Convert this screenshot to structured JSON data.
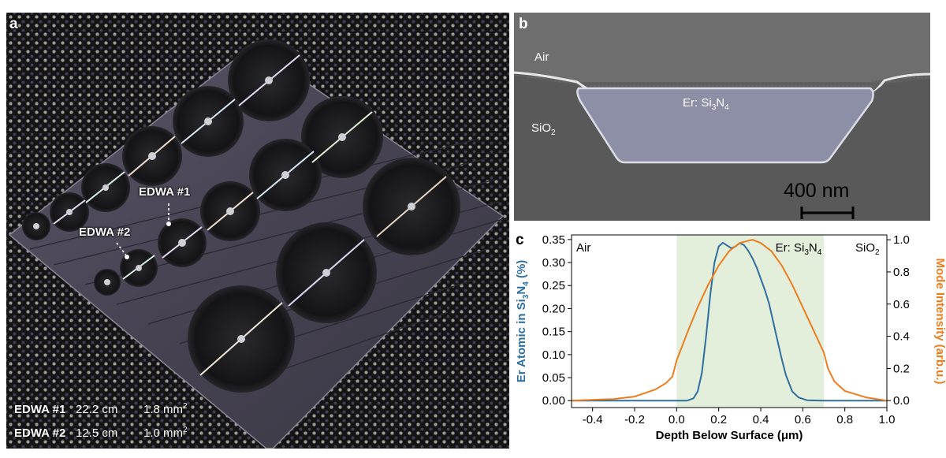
{
  "panel_a": {
    "letter": "a",
    "callouts": {
      "edwa1": "EDWA #1",
      "edwa2": "EDWA #2"
    },
    "legend": [
      {
        "name": "EDWA #1",
        "length": "22.2 cm",
        "area_value": "1.8 mm",
        "area_exp": "2"
      },
      {
        "name": "EDWA #2",
        "length": "12.5 cm",
        "area_value": "1.0 mm",
        "area_exp": "2"
      }
    ]
  },
  "panel_b": {
    "letter": "b",
    "air_label": "Air",
    "sio2_label": {
      "base": "SiO",
      "sub": "2"
    },
    "core_label": {
      "prefix": "Er: Si",
      "sub1": "3",
      "mid": "N",
      "sub2": "4"
    },
    "scale_bar_label": "400 nm"
  },
  "panel_c": {
    "letter": "c"
  },
  "chart_data": {
    "type": "line",
    "xlabel": "Depth Below Surface (μm)",
    "ylabel_left": {
      "prefix": "Er Atomic in Si",
      "sub1": "3",
      "mid": "N",
      "sub2": "4",
      "suffix": " (%)"
    },
    "ylabel_right": "Mode Intensity (arb.u.)",
    "xlim": [
      -0.5,
      1.0
    ],
    "ylim_left": [
      -0.015,
      0.36
    ],
    "ylim_right": [
      -0.043,
      1.03
    ],
    "xticks": [
      "-0.4",
      "-0.2",
      "0.0",
      "0.2",
      "0.4",
      "0.6",
      "0.8",
      "1.0"
    ],
    "xtick_values": [
      -0.4,
      -0.2,
      0.0,
      0.2,
      0.4,
      0.6,
      0.8,
      1.0
    ],
    "yticks_left": [
      "0.00",
      "0.05",
      "0.10",
      "0.15",
      "0.20",
      "0.25",
      "0.30",
      "0.35"
    ],
    "ytick_values_left": [
      0,
      0.05,
      0.1,
      0.15,
      0.2,
      0.25,
      0.3,
      0.35
    ],
    "yticks_right": [
      "0.0",
      "0.2",
      "0.4",
      "0.6",
      "0.8",
      "1.0"
    ],
    "ytick_values_right": [
      0,
      0.2,
      0.4,
      0.6,
      0.8,
      1.0
    ],
    "region_labels": {
      "air": "Air",
      "core": {
        "prefix": "Er: Si",
        "sub1": "3",
        "mid": "N",
        "sub2": "4"
      },
      "sio2": {
        "base": "SiO",
        "sub": "2"
      }
    },
    "shaded_region": {
      "x0": 0.0,
      "x1": 0.7,
      "color": "#e3eedb"
    },
    "series": [
      {
        "axis": "left",
        "color": "#2f6f9f",
        "x": [
          -0.5,
          0.05,
          0.08,
          0.1,
          0.12,
          0.14,
          0.16,
          0.18,
          0.2,
          0.22,
          0.24,
          0.26,
          0.28,
          0.3,
          0.32,
          0.34,
          0.36,
          0.38,
          0.4,
          0.42,
          0.44,
          0.46,
          0.48,
          0.5,
          0.52,
          0.55,
          0.58,
          0.62,
          0.7,
          1.0
        ],
        "y": [
          0.0,
          0.0,
          0.005,
          0.02,
          0.06,
          0.14,
          0.23,
          0.3,
          0.335,
          0.343,
          0.337,
          0.331,
          0.335,
          0.342,
          0.338,
          0.326,
          0.31,
          0.29,
          0.265,
          0.24,
          0.21,
          0.17,
          0.13,
          0.09,
          0.055,
          0.02,
          0.007,
          0.001,
          0.0,
          0.0
        ]
      },
      {
        "axis": "right",
        "color": "#ee7d1e",
        "x": [
          -0.5,
          -0.3,
          -0.2,
          -0.1,
          -0.05,
          -0.02,
          0.0,
          0.05,
          0.1,
          0.15,
          0.2,
          0.25,
          0.3,
          0.33,
          0.36,
          0.4,
          0.45,
          0.5,
          0.55,
          0.6,
          0.65,
          0.7,
          0.72,
          0.75,
          0.8,
          0.9,
          1.0
        ],
        "y": [
          0.0,
          0.01,
          0.025,
          0.07,
          0.11,
          0.15,
          0.25,
          0.42,
          0.58,
          0.72,
          0.84,
          0.93,
          0.98,
          0.99,
          1.0,
          0.98,
          0.93,
          0.84,
          0.72,
          0.58,
          0.44,
          0.3,
          0.2,
          0.12,
          0.06,
          0.02,
          0.0
        ]
      }
    ]
  }
}
